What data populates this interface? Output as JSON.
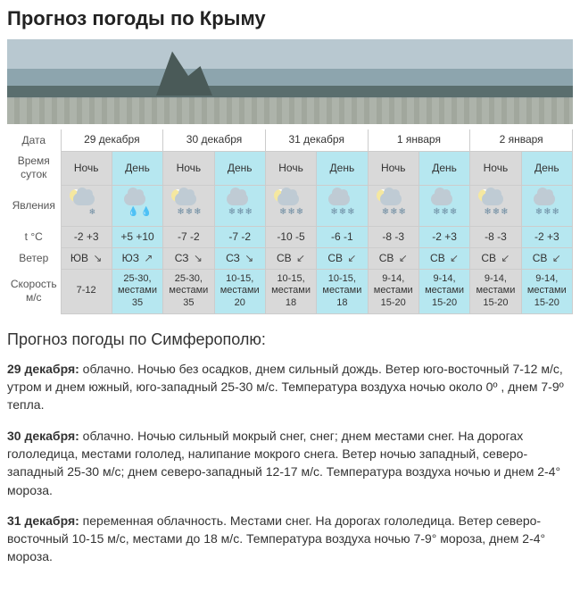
{
  "title": "Прогноз погоды по Крыму",
  "row_headers": {
    "date": "Дата",
    "tod": "Время суток",
    "phen": "Явления",
    "temp": "t °C",
    "wind": "Ветер",
    "speed": "Скорость м/с"
  },
  "tod_labels": {
    "night": "Ночь",
    "day": "День"
  },
  "dates": [
    "29 декабря",
    "30 декабря",
    "31 декабря",
    "1 января",
    "2 января"
  ],
  "cells": {
    "phen": [
      {
        "night": "cloud-moon-flake",
        "day": "cloud-rain"
      },
      {
        "night": "cloud-moon-snow",
        "day": "cloud-snow"
      },
      {
        "night": "cloud-moon-snow",
        "day": "cloud-snow"
      },
      {
        "night": "cloud-moon-snow",
        "day": "cloud-snow"
      },
      {
        "night": "cloud-moon-snow",
        "day": "cloud-snow"
      }
    ],
    "temp": [
      {
        "night": "-2 +3",
        "day": "+5 +10"
      },
      {
        "night": "-7 -2",
        "day": "-7 -2"
      },
      {
        "night": "-10 -5",
        "day": "-6 -1"
      },
      {
        "night": "-8 -3",
        "day": "-2 +3"
      },
      {
        "night": "-8 -3",
        "day": "-2 +3"
      }
    ],
    "wind": [
      {
        "night": {
          "dir": "ЮВ",
          "arrow": "↘"
        },
        "day": {
          "dir": "ЮЗ",
          "arrow": "↗"
        }
      },
      {
        "night": {
          "dir": "СЗ",
          "arrow": "↘"
        },
        "day": {
          "dir": "СЗ",
          "arrow": "↘"
        }
      },
      {
        "night": {
          "dir": "СВ",
          "arrow": "↙"
        },
        "day": {
          "dir": "СВ",
          "arrow": "↙"
        }
      },
      {
        "night": {
          "dir": "СВ",
          "arrow": "↙"
        },
        "day": {
          "dir": "СВ",
          "arrow": "↙"
        }
      },
      {
        "night": {
          "dir": "СВ",
          "arrow": "↙"
        },
        "day": {
          "dir": "СВ",
          "arrow": "↙"
        }
      }
    ],
    "speed": [
      {
        "night": "7-12",
        "day": "25-30, местами 35"
      },
      {
        "night": "25-30, местами 35",
        "day": "10-15, местами 20"
      },
      {
        "night": "10-15, местами 18",
        "day": "10-15, местами 18"
      },
      {
        "night": "9-14, местами 15-20",
        "day": "9-14, местами 15-20"
      },
      {
        "night": "9-14, местами 15-20",
        "day": "9-14, местами 15-20"
      }
    ]
  },
  "subtitle": "Прогноз погоды по Симферополю:",
  "paragraphs": [
    {
      "date": "29 декабря:",
      "text": " облачно. Ночью без осадков, днем сильный дождь. Ветер юго-восточный 7-12 м/с, утром и днем южный, юго-западный 25-30 м/с. Температура воздуха ночью около 0º , днем 7-9º тепла."
    },
    {
      "date": "30 декабря:",
      "text": " облачно. Ночью сильный мокрый снег, снег; днем местами снег. На дорогах гололедица, местами гололед, налипание мокрого снега. Ветер ночью западный, северо-западный 25-30 м/с; днем северо-западный 12-17 м/с. Температура воздуха ночью и днем 2-4° мороза."
    },
    {
      "date": "31 декабря:",
      "text": " переменная облачность. Местами снег. На дорогах гололедица. Ветер северо-восточный 10-15 м/с, местами до 18 м/с. Температура воздуха ночью 7-9° мороза, днем 2-4° мороза."
    }
  ],
  "colors": {
    "night_bg": "#d9d9d9",
    "day_bg": "#b6e7f0",
    "border": "#cccccc"
  }
}
